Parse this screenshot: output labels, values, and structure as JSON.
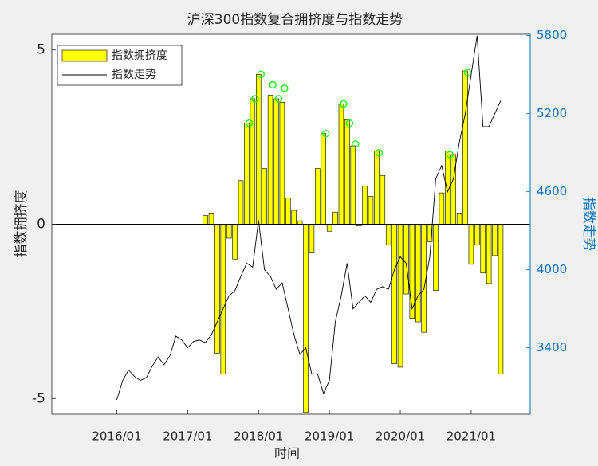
{
  "chart_data": {
    "type": "bar",
    "title": "沪深300指数复合拥挤度与指数走势",
    "xlabel": "时间",
    "ylabel": "指数拥挤度",
    "y2label": "指数走势",
    "xlim": [
      "2015/02",
      "2021/11"
    ],
    "xticks": [
      "2016/01",
      "2017/01",
      "2018/01",
      "2019/01",
      "2020/01",
      "2021/01"
    ],
    "ylim": [
      -5.45,
      5.45
    ],
    "yticks": [
      -5,
      0,
      5
    ],
    "y2lim": [
      2890,
      5810
    ],
    "y2ticks": [
      3400,
      4000,
      4600,
      5200,
      5800
    ],
    "legend": "upper left",
    "series": [
      {
        "name": "指数拥挤度",
        "type": "bar",
        "color": "#ffff00",
        "x": [
          "2017/04",
          "2017/05",
          "2017/06",
          "2017/07",
          "2017/08",
          "2017/09",
          "2017/10",
          "2017/11",
          "2017/12",
          "2018/01",
          "2018/02",
          "2018/03",
          "2018/04",
          "2018/05",
          "2018/06",
          "2018/07",
          "2018/08",
          "2018/09",
          "2018/10",
          "2018/11",
          "2018/12",
          "2019/01",
          "2019/02",
          "2019/03",
          "2019/04",
          "2019/05",
          "2019/06",
          "2019/07",
          "2019/08",
          "2019/09",
          "2019/10",
          "2019/11",
          "2019/12",
          "2020/01",
          "2020/02",
          "2020/03",
          "2020/04",
          "2020/05",
          "2020/06",
          "2020/07",
          "2020/08",
          "2020/09",
          "2020/10",
          "2020/11",
          "2020/12",
          "2021/01",
          "2021/02",
          "2021/03",
          "2021/04",
          "2021/05",
          "2021/06"
        ],
        "values": [
          0.25,
          0.3,
          -3.7,
          -4.3,
          -0.4,
          -1.0,
          1.25,
          2.9,
          3.6,
          4.3,
          1.6,
          3.7,
          3.6,
          3.5,
          0.75,
          0.4,
          0.1,
          -5.4,
          -0.8,
          1.6,
          2.6,
          -0.2,
          0.35,
          3.45,
          3.0,
          2.25,
          -0.05,
          1.1,
          0.8,
          2.1,
          1.4,
          -0.6,
          -4.0,
          -4.1,
          -2.0,
          -2.7,
          -2.8,
          -3.1,
          -0.5,
          -1.9,
          0.9,
          2.1,
          2.0,
          0.3,
          4.4,
          -1.15,
          -0.6,
          -1.4,
          -1.7,
          -0.9,
          -4.3
        ]
      },
      {
        "name": "指数走势",
        "type": "line",
        "axis": "y2",
        "color": "#000000",
        "x": [
          "2016/01",
          "2016/02",
          "2016/03",
          "2016/04",
          "2016/05",
          "2016/06",
          "2016/07",
          "2016/08",
          "2016/09",
          "2016/10",
          "2016/11",
          "2016/12",
          "2017/01",
          "2017/02",
          "2017/03",
          "2017/04",
          "2017/05",
          "2017/06",
          "2017/07",
          "2017/08",
          "2017/09",
          "2017/10",
          "2017/11",
          "2017/12",
          "2018/01",
          "2018/02",
          "2018/03",
          "2018/04",
          "2018/05",
          "2018/06",
          "2018/07",
          "2018/08",
          "2018/09",
          "2018/10",
          "2018/11",
          "2018/12",
          "2019/01",
          "2019/02",
          "2019/03",
          "2019/04",
          "2019/05",
          "2019/06",
          "2019/07",
          "2019/08",
          "2019/09",
          "2019/10",
          "2019/11",
          "2019/12",
          "2020/01",
          "2020/02",
          "2020/03",
          "2020/04",
          "2020/05",
          "2020/06",
          "2020/07",
          "2020/08",
          "2020/09",
          "2020/10",
          "2020/11",
          "2020/12",
          "2021/01",
          "2021/02",
          "2021/03",
          "2021/04",
          "2021/05",
          "2021/06"
        ],
        "values": [
          3000,
          3150,
          3230,
          3180,
          3150,
          3170,
          3260,
          3330,
          3270,
          3340,
          3490,
          3460,
          3400,
          3450,
          3460,
          3440,
          3500,
          3600,
          3700,
          3800,
          3840,
          3950,
          4050,
          4020,
          4380,
          4000,
          3950,
          3850,
          3900,
          3700,
          3500,
          3350,
          3400,
          3200,
          3200,
          3050,
          3150,
          3600,
          3800,
          4050,
          3700,
          3750,
          3800,
          3750,
          3850,
          3870,
          3850,
          4000,
          4100,
          4050,
          3700,
          3800,
          3850,
          4100,
          4700,
          4800,
          4600,
          4700,
          4980,
          5200,
          5500,
          5800,
          5100,
          5100,
          5200,
          5300
        ]
      }
    ],
    "markers": {
      "color": "#00ff00",
      "x": [
        "2017/11",
        "2017/12",
        "2018/01",
        "2018/03",
        "2018/04",
        "2018/05",
        "2018/12",
        "2019/03",
        "2019/04",
        "2019/05",
        "2019/09",
        "2020/09",
        "2020/12"
      ],
      "values": [
        2.9,
        3.6,
        4.3,
        4.0,
        3.6,
        3.9,
        2.6,
        3.45,
        2.9,
        2.3,
        2.05,
        2.0,
        4.35
      ]
    }
  }
}
